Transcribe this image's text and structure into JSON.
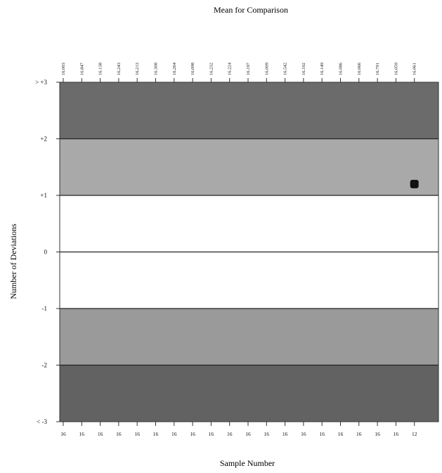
{
  "chart_data": {
    "type": "scatter",
    "title": "Mean for Comparison",
    "xlabel": "Sample Number",
    "ylabel": "Number of Deviations",
    "ylim": [
      -3,
      3
    ],
    "y_ticks": [
      {
        "value": 3,
        "label": "> +3"
      },
      {
        "value": 2,
        "label": "+2"
      },
      {
        "value": 1,
        "label": "+1"
      },
      {
        "value": 0,
        "label": "0"
      },
      {
        "value": -1,
        "label": "-1"
      },
      {
        "value": -2,
        "label": "-2"
      },
      {
        "value": -3,
        "label": "< -3"
      }
    ],
    "bands": [
      {
        "from": 2,
        "to": 3,
        "color": "#6b6b6b"
      },
      {
        "from": 1,
        "to": 2,
        "color": "#a9a9a9"
      },
      {
        "from": -1,
        "to": 1,
        "color": "#ffffff"
      },
      {
        "from": -2,
        "to": -1,
        "color": "#9a9a9a"
      },
      {
        "from": -3,
        "to": -2,
        "color": "#626262"
      }
    ],
    "x_tick_labels": [
      "16",
      "16",
      "16",
      "16",
      "16",
      "16",
      "16",
      "16",
      "16",
      "16",
      "16",
      "16",
      "16",
      "16",
      "16",
      "16",
      "16",
      "16",
      "16",
      "12"
    ],
    "top_tick_labels": [
      "16.003",
      "16.847",
      "16.138",
      "16.243",
      "16.213",
      "16.308",
      "16.264",
      "16.098",
      "16.232",
      "16.224",
      "16.197",
      "16.009",
      "16.542",
      "16.102",
      "16.149",
      "16.086",
      "16.066",
      "16.791",
      "16.059",
      "16.061"
    ],
    "points": [
      {
        "x_index": 19,
        "y": 1.2
      }
    ]
  }
}
